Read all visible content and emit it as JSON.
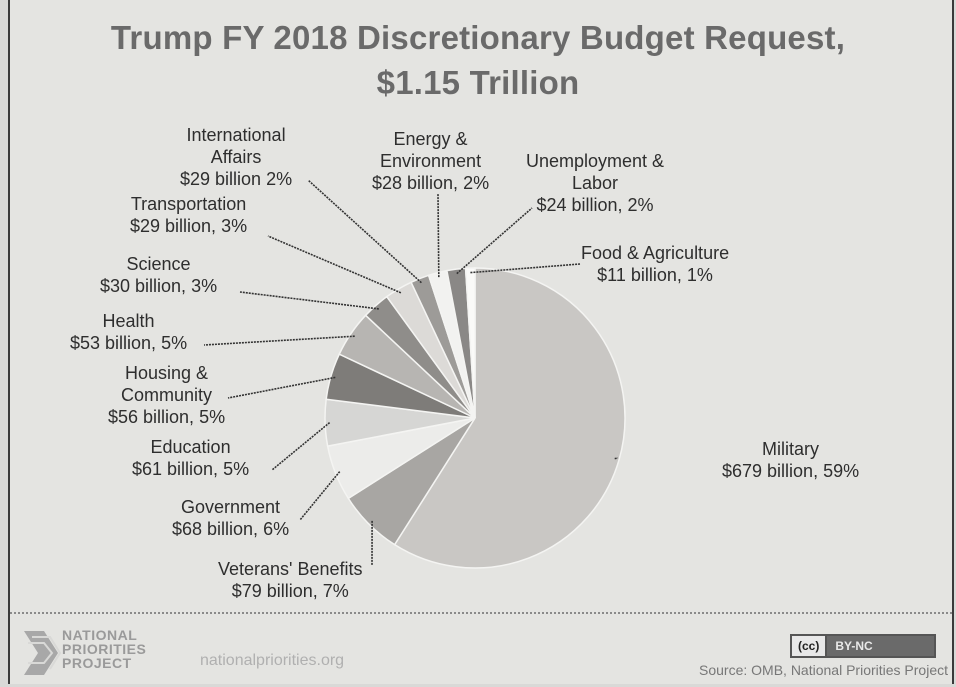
{
  "chart_data": {
    "type": "pie",
    "title": "Trump FY 2018 Discretionary  Budget Request,",
    "subtitle": "$1.15 Trillion",
    "slices": [
      {
        "name": "Military",
        "amount": "$679 billion",
        "pct": 59,
        "color": "#c9c7c4"
      },
      {
        "name": "Veterans' Benefits",
        "amount": "$79 billion",
        "pct": 7,
        "color": "#a8a6a3"
      },
      {
        "name": "Government",
        "amount": "$68 billion",
        "pct": 6,
        "color": "#ececea"
      },
      {
        "name": "Education",
        "amount": "$61 billion",
        "pct": 5,
        "color": "#d6d6d4"
      },
      {
        "name": "Housing & Community",
        "amount": "$56 billion",
        "pct": 5,
        "color": "#7e7c79"
      },
      {
        "name": "Health",
        "amount": "$53 billion",
        "pct": 5,
        "color": "#b7b5b2"
      },
      {
        "name": "Science",
        "amount": "$30 billion",
        "pct": 3,
        "color": "#8f8d8a"
      },
      {
        "name": "Transportation",
        "amount": "$29 billion",
        "pct": 3,
        "color": "#dcdad7"
      },
      {
        "name": "International Affairs",
        "amount": "$29 billion",
        "pct": 2,
        "color": "#9d9b98"
      },
      {
        "name": "Energy & Environment",
        "amount": "$28 billion",
        "pct": 2,
        "color": "#f2f2f0"
      },
      {
        "name": "Unemployment & Labor",
        "amount": "$24 billion",
        "pct": 2,
        "color": "#8a8886"
      },
      {
        "name": "Food & Agriculture",
        "amount": "$11 billion",
        "pct": 1,
        "color": "#fafaf8"
      }
    ]
  },
  "labels": {
    "intl": {
      "l1": "International",
      "l2": "Affairs",
      "l3": "$29 billion 2%"
    },
    "energy": {
      "l1": "Energy &",
      "l2": "Environment",
      "l3": "$28 billion, 2%"
    },
    "unemp": {
      "l1": "Unemployment &",
      "l2": "Labor",
      "l3": "$24 billion, 2%"
    },
    "transport": {
      "l1": "Transportation",
      "l2": "$29 billion, 3%"
    },
    "food": {
      "l1": "Food & Agriculture",
      "l2": "$11 billion, 1%"
    },
    "science": {
      "l1": "Science",
      "l2": "$30 billion, 3%"
    },
    "health": {
      "l1": "Health",
      "l2": "$53 billion, 5%"
    },
    "housing": {
      "l1": "Housing &",
      "l2": "Community",
      "l3": "$56 billion, 5%"
    },
    "education": {
      "l1": "Education",
      "l2": "$61 billion, 5%"
    },
    "government": {
      "l1": "Government",
      "l2": "$68 billion, 6%"
    },
    "veterans": {
      "l1": "Veterans' Benefits",
      "l2": "$79 billion, 7%"
    },
    "military": {
      "l1": "Military",
      "l2": "$679 billion, 59%"
    }
  },
  "footer": {
    "org_line1": "NATIONAL",
    "org_line2": "PRIORITIES",
    "org_line3": "PROJECT",
    "url": "nationalpriorities.org",
    "cc": "(cc)",
    "license": "BY-NC",
    "source": "Source: OMB, National Priorities Project"
  }
}
